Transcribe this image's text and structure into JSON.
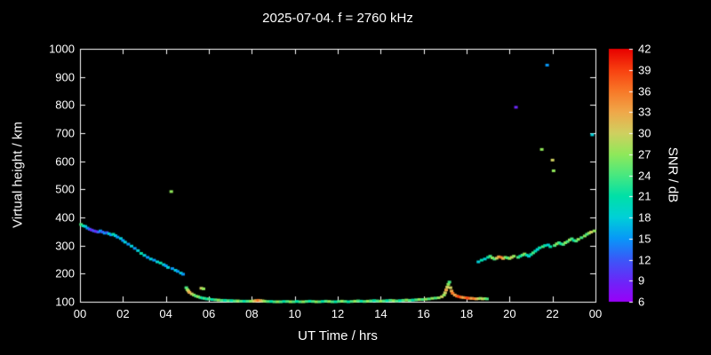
{
  "chart_data": {
    "type": "scatter",
    "title": "2025-07-04. f = 2760 kHz",
    "xlabel": "UT Time / hrs",
    "ylabel": "Virtual height / km",
    "xlim": [
      0,
      24
    ],
    "ylim": [
      100,
      1000
    ],
    "grid": false,
    "background": "#000000",
    "frame_color": "#ffffff",
    "x_tick_values": [
      0,
      2,
      4,
      6,
      8,
      10,
      12,
      14,
      16,
      18,
      20,
      22,
      24
    ],
    "x_tick_labels": [
      "00",
      "02",
      "04",
      "06",
      "08",
      "10",
      "12",
      "14",
      "16",
      "18",
      "20",
      "22",
      "00"
    ],
    "y_ticks": [
      100,
      200,
      300,
      400,
      500,
      600,
      700,
      800,
      900,
      1000
    ],
    "colorbar": {
      "label": "SNR / dB",
      "min": 6,
      "max": 42,
      "ticks": [
        6,
        9,
        12,
        15,
        18,
        21,
        24,
        27,
        30,
        33,
        36,
        39,
        42
      ],
      "stops": [
        {
          "v": 6,
          "c": "#9a00f8"
        },
        {
          "v": 9,
          "c": "#6a28f8"
        },
        {
          "v": 12,
          "c": "#3a58f8"
        },
        {
          "v": 15,
          "c": "#0898f8"
        },
        {
          "v": 18,
          "c": "#00d0d8"
        },
        {
          "v": 21,
          "c": "#00e0a8"
        },
        {
          "v": 24,
          "c": "#48e880"
        },
        {
          "v": 27,
          "c": "#90e85a"
        },
        {
          "v": 30,
          "c": "#d0d060"
        },
        {
          "v": 33,
          "c": "#f0a84a"
        },
        {
          "v": 36,
          "c": "#f87828"
        },
        {
          "v": 39,
          "c": "#f84010"
        },
        {
          "v": 42,
          "c": "#e80000"
        }
      ]
    },
    "marker": {
      "w": 4,
      "h": 3
    },
    "points": [
      [
        0.05,
        375,
        24
      ],
      [
        0.15,
        370,
        21
      ],
      [
        0.25,
        368,
        18
      ],
      [
        0.35,
        362,
        15
      ],
      [
        0.45,
        358,
        12
      ],
      [
        0.55,
        355,
        9
      ],
      [
        0.65,
        352,
        12
      ],
      [
        0.75,
        350,
        9
      ],
      [
        0.85,
        348,
        12
      ],
      [
        0.95,
        352,
        15
      ],
      [
        1.05,
        348,
        12
      ],
      [
        1.15,
        344,
        15
      ],
      [
        1.25,
        346,
        12
      ],
      [
        1.35,
        342,
        18
      ],
      [
        1.45,
        338,
        15
      ],
      [
        1.55,
        340,
        21
      ],
      [
        1.65,
        335,
        18
      ],
      [
        1.75,
        330,
        15
      ],
      [
        1.9,
        325,
        18
      ],
      [
        2.0,
        318,
        15
      ],
      [
        2.1,
        312,
        18
      ],
      [
        2.25,
        305,
        15
      ],
      [
        2.4,
        298,
        18
      ],
      [
        2.55,
        290,
        15
      ],
      [
        2.7,
        282,
        18
      ],
      [
        2.85,
        272,
        21
      ],
      [
        3.0,
        265,
        18
      ],
      [
        3.15,
        258,
        15
      ],
      [
        3.3,
        252,
        18
      ],
      [
        3.45,
        248,
        15
      ],
      [
        3.6,
        242,
        18
      ],
      [
        3.75,
        238,
        21
      ],
      [
        3.9,
        232,
        18
      ],
      [
        4.0,
        228,
        15
      ],
      [
        4.1,
        222,
        18
      ],
      [
        4.25,
        492,
        27
      ],
      [
        4.3,
        218,
        15
      ],
      [
        4.45,
        212,
        18
      ],
      [
        4.55,
        208,
        15
      ],
      [
        4.7,
        202,
        18
      ],
      [
        4.8,
        198,
        15
      ],
      [
        4.95,
        150,
        24
      ],
      [
        5.0,
        143,
        27
      ],
      [
        5.05,
        138,
        30
      ],
      [
        5.1,
        133,
        33
      ],
      [
        5.2,
        128,
        30
      ],
      [
        5.3,
        124,
        27
      ],
      [
        5.4,
        120,
        24
      ],
      [
        5.5,
        118,
        27
      ],
      [
        5.6,
        115,
        24
      ],
      [
        5.65,
        148,
        30
      ],
      [
        5.75,
        146,
        27
      ],
      [
        5.7,
        113,
        21
      ],
      [
        5.8,
        112,
        24
      ],
      [
        5.9,
        110,
        21
      ],
      [
        6.0,
        110,
        24
      ],
      [
        6.15,
        108,
        21
      ],
      [
        6.3,
        107,
        24
      ],
      [
        6.45,
        106,
        27
      ],
      [
        6.6,
        105,
        24
      ],
      [
        6.75,
        105,
        21
      ],
      [
        6.9,
        104,
        24
      ],
      [
        7.05,
        104,
        21
      ],
      [
        7.2,
        103,
        24
      ],
      [
        7.35,
        103,
        27
      ],
      [
        7.5,
        102,
        24
      ],
      [
        7.65,
        102,
        21
      ],
      [
        7.8,
        102,
        24
      ],
      [
        7.95,
        102,
        27
      ],
      [
        8.1,
        103,
        30
      ],
      [
        8.2,
        104,
        33
      ],
      [
        8.3,
        105,
        36
      ],
      [
        8.4,
        104,
        33
      ],
      [
        8.5,
        103,
        30
      ],
      [
        8.6,
        102,
        27
      ],
      [
        8.75,
        101,
        24
      ],
      [
        8.9,
        101,
        21
      ],
      [
        9.05,
        100,
        24
      ],
      [
        9.2,
        100,
        27
      ],
      [
        9.35,
        100,
        24
      ],
      [
        9.5,
        101,
        21
      ],
      [
        9.65,
        101,
        24
      ],
      [
        9.8,
        100,
        27
      ],
      [
        9.95,
        100,
        24
      ],
      [
        10.1,
        101,
        21
      ],
      [
        10.25,
        100,
        24
      ],
      [
        10.4,
        100,
        27
      ],
      [
        10.55,
        101,
        24
      ],
      [
        10.7,
        102,
        21
      ],
      [
        10.85,
        101,
        24
      ],
      [
        11.0,
        100,
        27
      ],
      [
        11.15,
        100,
        24
      ],
      [
        11.3,
        101,
        21
      ],
      [
        11.45,
        102,
        24
      ],
      [
        11.6,
        101,
        27
      ],
      [
        11.75,
        100,
        24
      ],
      [
        11.9,
        100,
        21
      ],
      [
        12.05,
        101,
        24
      ],
      [
        12.2,
        102,
        27
      ],
      [
        12.35,
        101,
        24
      ],
      [
        12.5,
        100,
        21
      ],
      [
        12.65,
        101,
        24
      ],
      [
        12.8,
        102,
        27
      ],
      [
        12.95,
        103,
        24
      ],
      [
        13.1,
        102,
        21
      ],
      [
        13.25,
        101,
        24
      ],
      [
        13.4,
        102,
        27
      ],
      [
        13.55,
        103,
        24
      ],
      [
        13.7,
        104,
        21
      ],
      [
        13.85,
        103,
        24
      ],
      [
        14.0,
        102,
        27
      ],
      [
        14.15,
        103,
        24
      ],
      [
        14.3,
        104,
        21
      ],
      [
        14.45,
        105,
        24
      ],
      [
        14.6,
        104,
        27
      ],
      [
        14.75,
        103,
        24
      ],
      [
        14.9,
        104,
        21
      ],
      [
        15.05,
        105,
        24
      ],
      [
        15.2,
        106,
        27
      ],
      [
        15.35,
        105,
        24
      ],
      [
        15.5,
        106,
        21
      ],
      [
        15.65,
        107,
        24
      ],
      [
        15.8,
        108,
        27
      ],
      [
        15.95,
        108,
        24
      ],
      [
        16.1,
        109,
        27
      ],
      [
        16.25,
        110,
        24
      ],
      [
        16.4,
        112,
        27
      ],
      [
        16.55,
        113,
        24
      ],
      [
        16.7,
        114,
        27
      ],
      [
        16.85,
        118,
        30
      ],
      [
        16.95,
        124,
        27
      ],
      [
        17.0,
        132,
        30
      ],
      [
        17.05,
        142,
        33
      ],
      [
        17.1,
        152,
        30
      ],
      [
        17.15,
        162,
        27
      ],
      [
        17.2,
        170,
        24
      ],
      [
        17.25,
        150,
        30
      ],
      [
        17.3,
        138,
        33
      ],
      [
        17.35,
        130,
        36
      ],
      [
        17.45,
        124,
        33
      ],
      [
        17.55,
        120,
        36
      ],
      [
        17.65,
        118,
        39
      ],
      [
        17.75,
        116,
        36
      ],
      [
        17.85,
        115,
        33
      ],
      [
        17.95,
        114,
        36
      ],
      [
        18.05,
        113,
        39
      ],
      [
        18.15,
        112,
        36
      ],
      [
        18.25,
        112,
        33
      ],
      [
        18.35,
        111,
        36
      ],
      [
        18.45,
        110,
        33
      ],
      [
        18.55,
        111,
        30
      ],
      [
        18.65,
        112,
        27
      ],
      [
        18.75,
        110,
        30
      ],
      [
        18.85,
        111,
        27
      ],
      [
        18.95,
        110,
        24
      ],
      [
        18.55,
        242,
        18
      ],
      [
        18.7,
        248,
        21
      ],
      [
        18.85,
        252,
        18
      ],
      [
        19.0,
        258,
        21
      ],
      [
        19.1,
        262,
        24
      ],
      [
        19.2,
        256,
        27
      ],
      [
        19.3,
        252,
        24
      ],
      [
        19.4,
        255,
        30
      ],
      [
        19.5,
        260,
        33
      ],
      [
        19.6,
        258,
        36
      ],
      [
        19.7,
        254,
        33
      ],
      [
        19.8,
        258,
        27
      ],
      [
        19.9,
        256,
        24
      ],
      [
        20.0,
        254,
        27
      ],
      [
        20.1,
        258,
        30
      ],
      [
        20.2,
        262,
        27
      ],
      [
        20.3,
        792,
        9
      ],
      [
        20.4,
        258,
        24
      ],
      [
        20.5,
        262,
        21
      ],
      [
        20.6,
        266,
        24
      ],
      [
        20.7,
        270,
        27
      ],
      [
        20.8,
        266,
        21
      ],
      [
        20.9,
        262,
        18
      ],
      [
        21.0,
        268,
        21
      ],
      [
        21.1,
        274,
        24
      ],
      [
        21.2,
        280,
        21
      ],
      [
        21.3,
        286,
        18
      ],
      [
        21.4,
        292,
        21
      ],
      [
        21.5,
        642,
        27
      ],
      [
        21.55,
        296,
        24
      ],
      [
        21.65,
        300,
        21
      ],
      [
        21.75,
        942,
        15
      ],
      [
        21.8,
        302,
        18
      ],
      [
        21.9,
        296,
        21
      ],
      [
        22.0,
        604,
        30
      ],
      [
        22.05,
        566,
        27
      ],
      [
        22.1,
        300,
        24
      ],
      [
        22.2,
        306,
        27
      ],
      [
        22.3,
        310,
        24
      ],
      [
        22.4,
        306,
        21
      ],
      [
        22.5,
        304,
        24
      ],
      [
        22.6,
        310,
        27
      ],
      [
        22.7,
        314,
        24
      ],
      [
        22.8,
        320,
        27
      ],
      [
        22.9,
        324,
        24
      ],
      [
        23.0,
        318,
        21
      ],
      [
        23.1,
        316,
        24
      ],
      [
        23.2,
        322,
        27
      ],
      [
        23.35,
        328,
        24
      ],
      [
        23.5,
        334,
        27
      ],
      [
        23.6,
        340,
        24
      ],
      [
        23.7,
        344,
        27
      ],
      [
        23.8,
        348,
        30
      ],
      [
        23.85,
        694,
        18
      ],
      [
        23.95,
        352,
        27
      ]
    ]
  }
}
